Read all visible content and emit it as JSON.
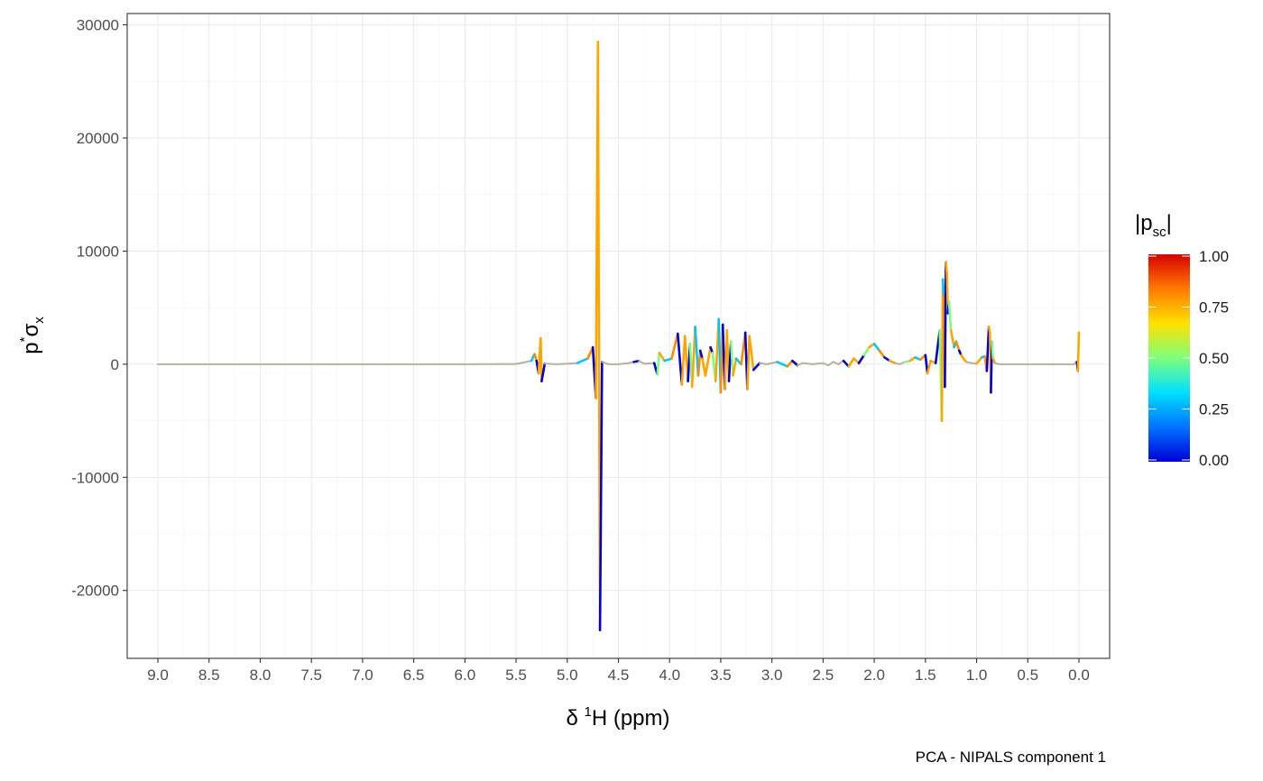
{
  "chart_data": {
    "type": "line",
    "xlabel_parts": {
      "prefix": "δ ",
      "sup": "1",
      "main": "H (ppm)"
    },
    "ylabel_parts": {
      "base": "p",
      "sup": "*",
      "sigma": "σ",
      "sub": "x"
    },
    "caption": "PCA - NIPALS component 1",
    "xlim": [
      9.3,
      -0.3
    ],
    "x_reversed": true,
    "ylim": [
      -26000,
      31000
    ],
    "x_ticks": [
      "9.0",
      "8.5",
      "8.0",
      "7.5",
      "7.0",
      "6.5",
      "6.0",
      "5.5",
      "5.0",
      "4.5",
      "4.0",
      "3.5",
      "3.0",
      "2.5",
      "2.0",
      "1.5",
      "1.0",
      "0.5",
      "0.0"
    ],
    "y_ticks": [
      "-20000",
      "-10000",
      "0",
      "10000",
      "20000",
      "30000"
    ],
    "grid": true,
    "legend": {
      "title_parts": {
        "pre": "|p",
        "sub": "sc",
        "post": "|"
      },
      "position": "right",
      "tick_labels": [
        "1.00",
        "0.75",
        "0.50",
        "0.25",
        "0.00"
      ],
      "gradient_colors": [
        "#0000d8",
        "#0072ff",
        "#00e0ff",
        "#7dff7d",
        "#ffe200",
        "#ff7a00",
        "#d70000"
      ]
    },
    "series": [
      {
        "x": [
          9.0,
          7.0,
          6.0,
          5.5,
          5.35,
          5.32,
          5.3,
          5.28,
          5.26,
          5.25,
          5.22,
          5.1,
          4.9,
          4.8,
          4.75,
          4.72,
          4.7,
          4.68,
          4.66,
          4.6,
          4.5,
          4.4,
          4.35,
          4.3,
          4.25,
          4.15,
          4.12,
          4.1,
          4.05,
          3.98,
          3.92,
          3.88,
          3.85,
          3.82,
          3.8,
          3.78,
          3.75,
          3.72,
          3.7,
          3.68,
          3.65,
          3.6,
          3.58,
          3.55,
          3.52,
          3.5,
          3.48,
          3.46,
          3.44,
          3.42,
          3.4,
          3.38,
          3.35,
          3.3,
          3.26,
          3.24,
          3.22,
          3.18,
          3.12,
          3.05,
          2.95,
          2.85,
          2.8,
          2.75,
          2.7,
          2.6,
          2.5,
          2.45,
          2.4,
          2.35,
          2.3,
          2.25,
          2.2,
          2.15,
          2.1,
          2.05,
          2.0,
          1.95,
          1.9,
          1.85,
          1.8,
          1.75,
          1.7,
          1.65,
          1.6,
          1.55,
          1.5,
          1.48,
          1.45,
          1.4,
          1.36,
          1.34,
          1.33,
          1.32,
          1.31,
          1.3,
          1.29,
          1.28,
          1.27,
          1.25,
          1.22,
          1.2,
          1.17,
          1.15,
          1.12,
          1.1,
          1.05,
          1.0,
          0.95,
          0.92,
          0.9,
          0.88,
          0.87,
          0.86,
          0.85,
          0.84,
          0.82,
          0.78,
          0.7,
          0.6,
          0.5,
          0.4,
          0.3,
          0.2,
          0.1,
          0.05,
          0.02,
          0.01,
          0.0
        ],
        "y": [
          0,
          0,
          0,
          20,
          300,
          900,
          300,
          -800,
          2300,
          -1500,
          50,
          0,
          100,
          500,
          1500,
          -3000,
          28500,
          -23500,
          200,
          0,
          0,
          100,
          200,
          300,
          50,
          100,
          -900,
          1000,
          300,
          500,
          2700,
          -1800,
          2500,
          -1500,
          1800,
          -2000,
          3300,
          -1000,
          1200,
          500,
          -1000,
          1500,
          1000,
          -1500,
          4000,
          -2500,
          3500,
          -2200,
          3000,
          -1500,
          2000,
          -1000,
          500,
          0,
          2800,
          -2200,
          2500,
          -500,
          100,
          0,
          200,
          -200,
          300,
          -100,
          100,
          0,
          100,
          -100,
          200,
          0,
          300,
          -200,
          500,
          100,
          800,
          1500,
          1800,
          1200,
          600,
          300,
          100,
          0,
          200,
          300,
          600,
          400,
          800,
          -800,
          300,
          100,
          3000,
          -5000,
          7500,
          6000,
          -2000,
          9000,
          8000,
          4500,
          5500,
          3000,
          1500,
          2000,
          1200,
          800,
          400,
          200,
          100,
          50,
          600,
          700,
          -600,
          3300,
          2800,
          -2500,
          2000,
          500,
          100,
          0,
          0,
          0,
          0,
          0,
          0,
          0,
          0,
          0,
          200,
          -600,
          2800
        ]
      }
    ]
  }
}
